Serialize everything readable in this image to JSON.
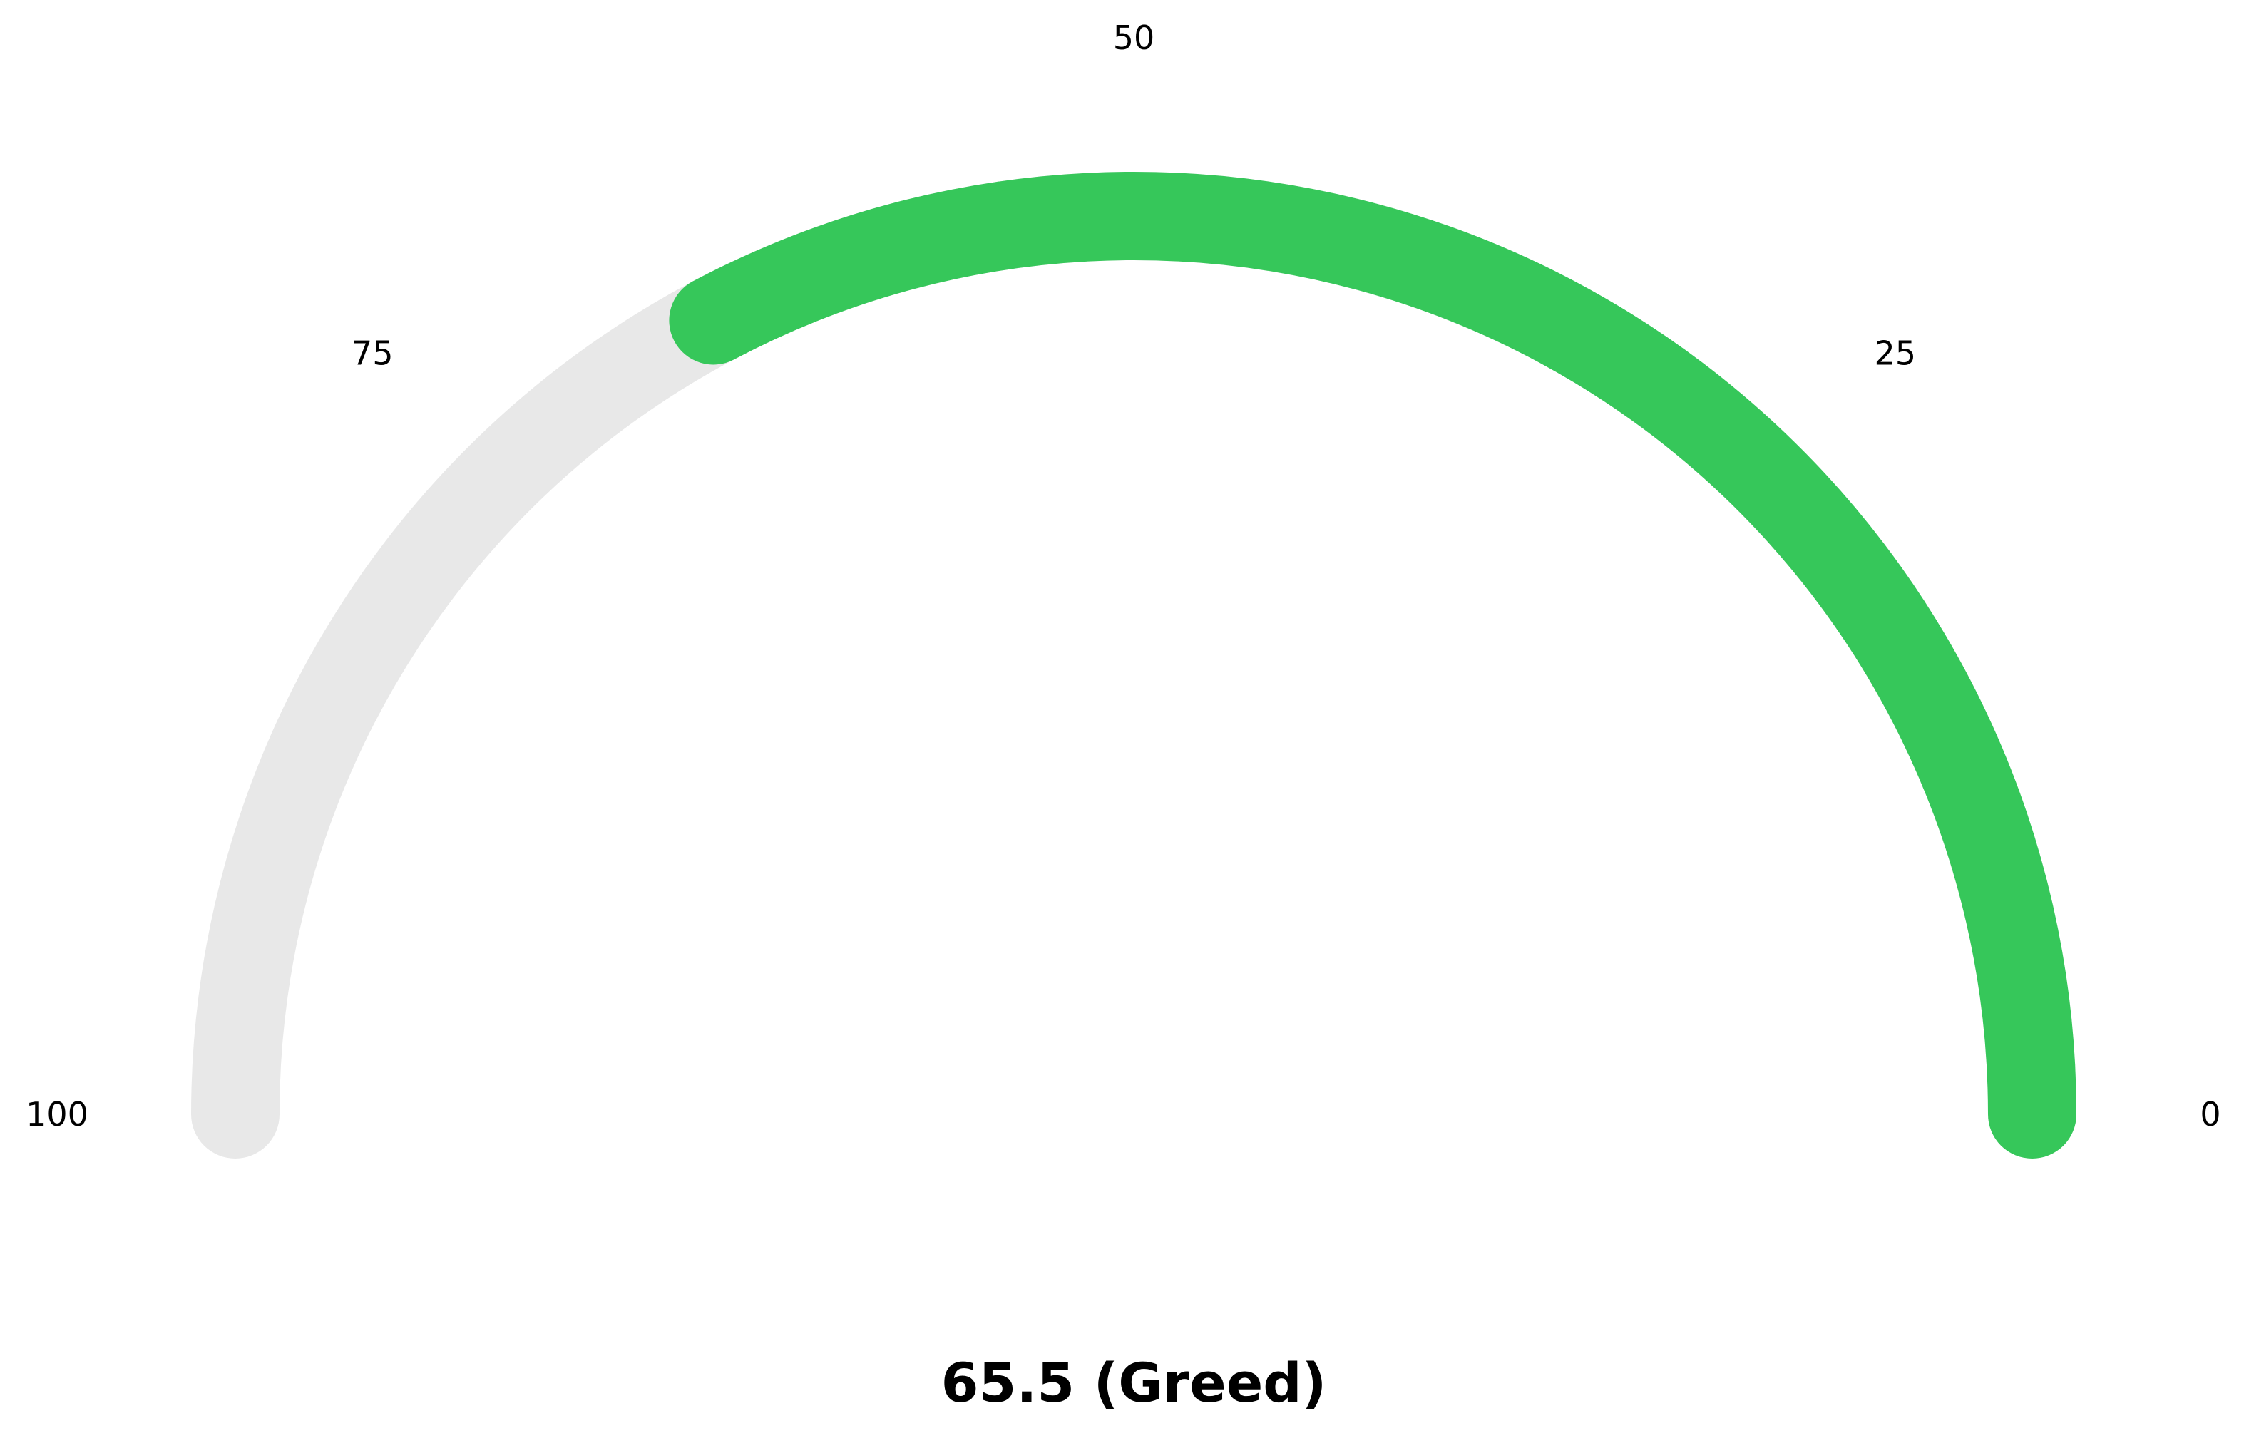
{
  "chart_data": {
    "type": "gauge",
    "min": 0,
    "max": 100,
    "value": 65.5,
    "value_text": "65.5 (Greed)",
    "direction": "right-to-left",
    "ticks": [
      {
        "value": 0,
        "label": "0"
      },
      {
        "value": 25,
        "label": "25"
      },
      {
        "value": 50,
        "label": "50"
      },
      {
        "value": 75,
        "label": "75"
      },
      {
        "value": 100,
        "label": "100"
      }
    ],
    "colors": {
      "track": "#e8e8e8",
      "fill": "#36c75a",
      "text": "#000000"
    }
  }
}
